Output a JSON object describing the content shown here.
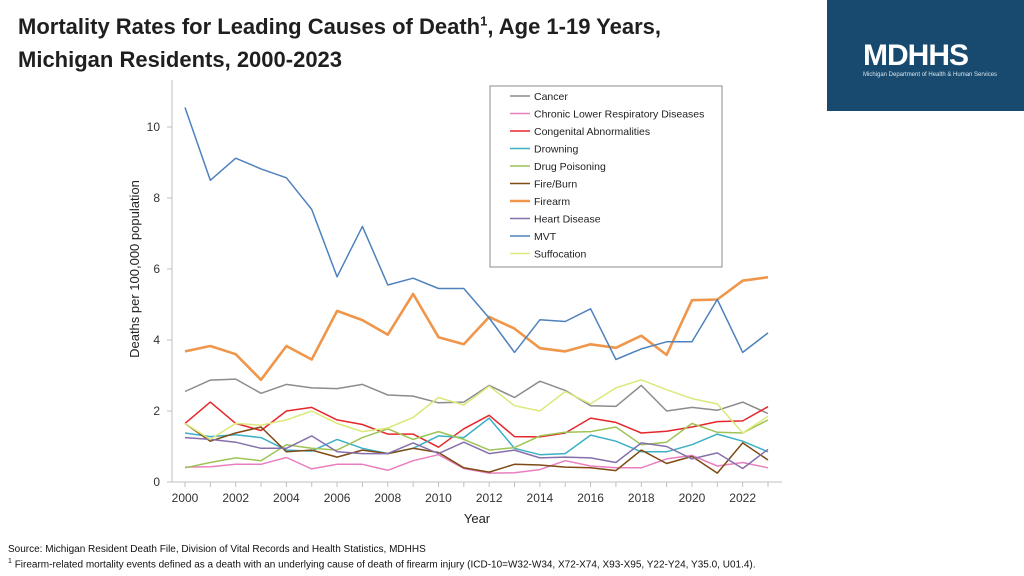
{
  "header": {
    "title_line1_prefix": "Mortality Rates for Leading Causes of Death",
    "title_line1_sup": "1",
    "title_line1_suffix": ", Age 1-19 Years,",
    "title_line2": "Michigan Residents, 2000-2023"
  },
  "logo": {
    "text": "MDHHS",
    "tagline": "Michigan Department of Health & Human Services",
    "background_color": "#174A6E"
  },
  "footer": {
    "source": "Source: Michigan Resident Death File, Division of Vital Records and Health Statistics, MDHHS",
    "note_sup": "1",
    "note": "Firearm-related mortality events defined as a death with an underlying cause of death of firearm injury (ICD-10=W32-W34, X72-X74, X93-X95, Y22-Y24, Y35.0, U01.4)."
  },
  "chart_data": {
    "type": "line",
    "title": "Mortality Rates for Leading Causes of Death, Age 1-19 Years, Michigan Residents, 2000-2023",
    "xlabel": "Year",
    "ylabel": "Deaths per 100,000 population",
    "x": [
      2000,
      2001,
      2002,
      2003,
      2004,
      2005,
      2006,
      2007,
      2008,
      2009,
      2010,
      2011,
      2012,
      2013,
      2014,
      2015,
      2016,
      2017,
      2018,
      2019,
      2020,
      2021,
      2022,
      2023
    ],
    "xticks": [
      2000,
      2002,
      2004,
      2006,
      2008,
      2010,
      2012,
      2014,
      2016,
      2018,
      2020,
      2022
    ],
    "xtick_labels": [
      "2000",
      "2002",
      "2004",
      "2006",
      "2008",
      "2010",
      "2012",
      "2014",
      "2016",
      "2018",
      "2020",
      "2022"
    ],
    "xlim": [
      2000,
      2023.4
    ],
    "ylim": [
      0,
      11
    ],
    "yticks": [
      0,
      2,
      4,
      6,
      8,
      10
    ],
    "ytick_labels": [
      "0",
      "2",
      "4",
      "6",
      "8",
      "10"
    ],
    "grid": false,
    "legend_position": "top-right",
    "series": [
      {
        "name": "Cancer",
        "color": "#8c8c8c",
        "width": 1.5,
        "values": [
          2.55,
          2.87,
          2.9,
          2.5,
          2.75,
          2.65,
          2.63,
          2.75,
          2.45,
          2.42,
          2.23,
          2.25,
          2.72,
          2.38,
          2.84,
          2.58,
          2.15,
          2.13,
          2.72,
          2.0,
          2.1,
          2.02,
          2.25,
          1.93
        ]
      },
      {
        "name": "Chronic Lower Respiratory Diseases",
        "color": "#e97fbf",
        "width": 1.5,
        "values": [
          0.42,
          0.43,
          0.5,
          0.5,
          0.69,
          0.37,
          0.5,
          0.5,
          0.33,
          0.6,
          0.77,
          0.38,
          0.25,
          0.26,
          0.35,
          0.6,
          0.45,
          0.4,
          0.4,
          0.65,
          0.75,
          0.45,
          0.55,
          0.4
        ]
      },
      {
        "name": "Congenital Abnormalities",
        "color": "#e5262b",
        "width": 1.5,
        "values": [
          1.65,
          2.25,
          1.65,
          1.45,
          2.0,
          2.1,
          1.75,
          1.62,
          1.35,
          1.35,
          0.98,
          1.5,
          1.88,
          1.28,
          1.27,
          1.38,
          1.8,
          1.68,
          1.38,
          1.43,
          1.55,
          1.7,
          1.72,
          2.12
        ]
      },
      {
        "name": "Drowning",
        "color": "#3cb0c6",
        "width": 1.5,
        "values": [
          1.38,
          1.28,
          1.33,
          1.25,
          0.9,
          0.87,
          1.2,
          0.95,
          0.8,
          0.95,
          1.3,
          1.25,
          1.8,
          0.95,
          0.77,
          0.8,
          1.32,
          1.15,
          0.85,
          0.85,
          1.05,
          1.35,
          1.15,
          0.85
        ]
      },
      {
        "name": "Drug Poisoning",
        "color": "#9ec455",
        "width": 1.5,
        "values": [
          0.4,
          0.55,
          0.68,
          0.6,
          1.05,
          0.95,
          0.9,
          1.25,
          1.5,
          1.2,
          1.42,
          1.2,
          0.9,
          0.97,
          1.3,
          1.4,
          1.42,
          1.55,
          1.05,
          1.12,
          1.65,
          1.4,
          1.38,
          1.75
        ]
      },
      {
        "name": "Fire/Burn",
        "color": "#7f4a14",
        "width": 1.5,
        "values": [
          1.65,
          1.15,
          1.38,
          1.55,
          0.85,
          0.9,
          0.7,
          0.9,
          0.8,
          0.95,
          0.83,
          0.4,
          0.28,
          0.5,
          0.48,
          0.42,
          0.4,
          0.32,
          0.9,
          0.52,
          0.72,
          0.25,
          1.1,
          0.62
        ]
      },
      {
        "name": "Firearm",
        "color": "#f0964a",
        "width": 2.6,
        "values": [
          3.68,
          3.83,
          3.6,
          2.88,
          3.83,
          3.45,
          4.82,
          4.56,
          4.15,
          5.3,
          4.08,
          3.88,
          4.65,
          4.32,
          3.77,
          3.68,
          3.88,
          3.78,
          4.12,
          3.58,
          5.12,
          5.14,
          5.67,
          5.77
        ]
      },
      {
        "name": "Heart Disease",
        "color": "#8670ab",
        "width": 1.5,
        "values": [
          1.25,
          1.2,
          1.12,
          0.95,
          0.95,
          1.3,
          0.85,
          0.8,
          0.8,
          1.1,
          0.8,
          1.12,
          0.8,
          0.9,
          0.68,
          0.7,
          0.68,
          0.55,
          1.1,
          1.0,
          0.65,
          0.82,
          0.38,
          0.92
        ]
      },
      {
        "name": "MVT",
        "color": "#4f82bd",
        "width": 1.5,
        "values": [
          10.55,
          8.5,
          9.12,
          8.82,
          8.57,
          7.68,
          5.78,
          7.2,
          5.55,
          5.74,
          5.45,
          5.45,
          4.62,
          3.65,
          4.57,
          4.52,
          4.88,
          3.45,
          3.75,
          3.95,
          3.95,
          5.14,
          3.65,
          4.2
        ]
      },
      {
        "name": "Suffocation",
        "color": "#dde87a",
        "width": 1.5,
        "values": [
          1.65,
          1.2,
          1.65,
          1.6,
          1.75,
          2.0,
          1.65,
          1.42,
          1.52,
          1.82,
          2.38,
          2.17,
          2.7,
          2.15,
          2.0,
          2.55,
          2.2,
          2.65,
          2.88,
          2.6,
          2.35,
          2.2,
          1.38,
          1.85
        ]
      }
    ]
  }
}
